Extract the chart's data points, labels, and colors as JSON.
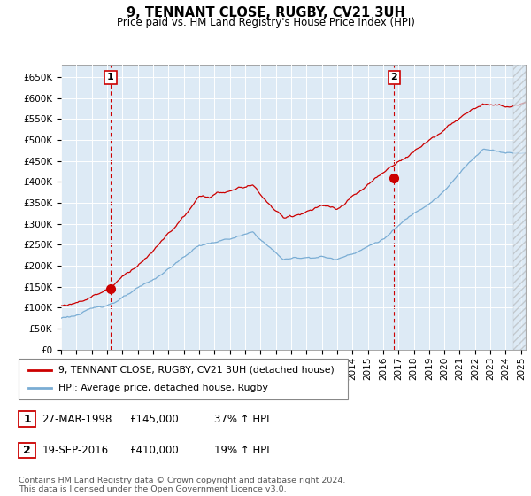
{
  "title": "9, TENNANT CLOSE, RUGBY, CV21 3UH",
  "subtitle": "Price paid vs. HM Land Registry's House Price Index (HPI)",
  "ylabel_ticks": [
    "£0",
    "£50K",
    "£100K",
    "£150K",
    "£200K",
    "£250K",
    "£300K",
    "£350K",
    "£400K",
    "£450K",
    "£500K",
    "£550K",
    "£600K",
    "£650K"
  ],
  "ylim": [
    0,
    680000
  ],
  "ytick_vals": [
    0,
    50000,
    100000,
    150000,
    200000,
    250000,
    300000,
    350000,
    400000,
    450000,
    500000,
    550000,
    600000,
    650000
  ],
  "xmin": 1995.0,
  "xmax": 2025.3,
  "data_end_x": 2024.5,
  "sale1_x": 1998.23,
  "sale1_y": 145000,
  "sale2_x": 2016.72,
  "sale2_y": 410000,
  "legend_line1": "9, TENNANT CLOSE, RUGBY, CV21 3UH (detached house)",
  "legend_line2": "HPI: Average price, detached house, Rugby",
  "table_row1": [
    "1",
    "27-MAR-1998",
    "£145,000",
    "37% ↑ HPI"
  ],
  "table_row2": [
    "2",
    "19-SEP-2016",
    "£410,000",
    "19% ↑ HPI"
  ],
  "footer": "Contains HM Land Registry data © Crown copyright and database right 2024.\nThis data is licensed under the Open Government Licence v3.0.",
  "hpi_color": "#7aadd4",
  "sale_color": "#cc0000",
  "plot_bg": "#ddeaf5",
  "grid_color": "#ffffff",
  "ann_box_color": "#cc0000"
}
